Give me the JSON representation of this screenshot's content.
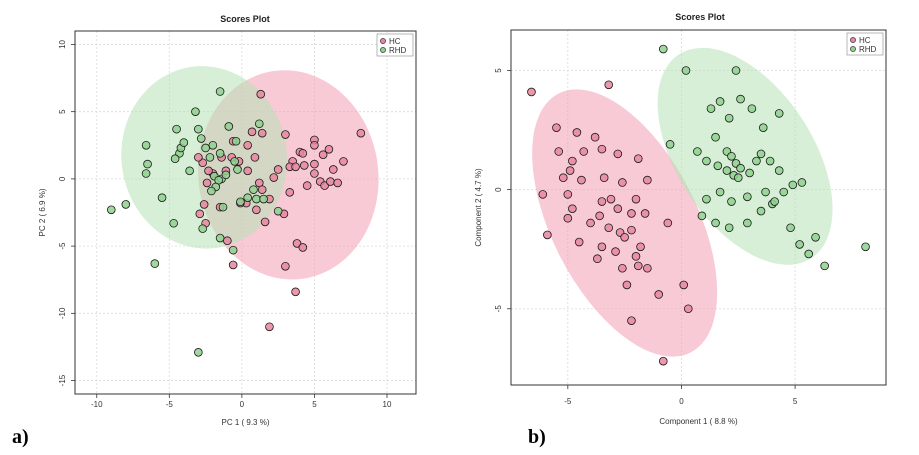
{
  "colors": {
    "HC": "#e8869f",
    "RHD": "#8fd18f",
    "HC_ellipse": "#f29fb5",
    "RHD_ellipse": "#b4e2b4"
  },
  "panels": [
    {
      "label": "a)"
    },
    {
      "label": "b)"
    }
  ],
  "chart_data": [
    {
      "type": "scatter",
      "title": "Scores Plot",
      "xlabel": "PC 1 ( 9.3 %)",
      "ylabel": "PC 2 ( 6.9 %)",
      "xlim": [
        -11.5,
        12
      ],
      "ylim": [
        -16,
        11
      ],
      "xticks": [
        -10,
        -5,
        0,
        5,
        10
      ],
      "yticks": [
        -15,
        -10,
        -5,
        0,
        5,
        10
      ],
      "grid": true,
      "legend": "top-right",
      "ellipses": [
        {
          "name": "HC",
          "cx": 3.2,
          "cy": 0.3,
          "rx": 6.2,
          "ry": 7.8,
          "angle": -8
        },
        {
          "name": "RHD",
          "cx": -2.6,
          "cy": 1.6,
          "rx": 5.7,
          "ry": 6.8,
          "angle": -8
        }
      ],
      "series": [
        {
          "name": "HC",
          "points": [
            [
              1.3,
              6.3
            ],
            [
              3.0,
              3.3
            ],
            [
              4.0,
              2.0
            ],
            [
              5.0,
              2.9
            ],
            [
              5.0,
              2.5
            ],
            [
              6.0,
              2.2
            ],
            [
              8.2,
              3.4
            ],
            [
              3.5,
              1.3
            ],
            [
              4.2,
              1.9
            ],
            [
              5.0,
              1.1
            ],
            [
              5.6,
              1.8
            ],
            [
              5.0,
              0.4
            ],
            [
              6.3,
              0.7
            ],
            [
              7.0,
              1.3
            ],
            [
              5.4,
              -0.2
            ],
            [
              5.7,
              -0.5
            ],
            [
              6.1,
              -0.2
            ],
            [
              6.6,
              -0.3
            ],
            [
              3.3,
              0.9
            ],
            [
              2.5,
              0.7
            ],
            [
              2.2,
              0.1
            ],
            [
              3.7,
              0.9
            ],
            [
              4.3,
              1.0
            ],
            [
              4.5,
              -0.5
            ],
            [
              3.3,
              -1.0
            ],
            [
              2.9,
              -2.6
            ],
            [
              1.9,
              -1.5
            ],
            [
              1.2,
              -0.3
            ],
            [
              1.4,
              -0.8
            ],
            [
              1.0,
              -2.3
            ],
            [
              0.3,
              -1.8
            ],
            [
              -0.1,
              -1.8
            ],
            [
              0.4,
              0.6
            ],
            [
              0.9,
              1.6
            ],
            [
              1.4,
              3.4
            ],
            [
              0.7,
              3.5
            ],
            [
              0.4,
              2.5
            ],
            [
              -0.2,
              1.3
            ],
            [
              -0.7,
              1.6
            ],
            [
              -0.6,
              2.8
            ],
            [
              -1.4,
              1.6
            ],
            [
              -1.1,
              0.6
            ],
            [
              -2.0,
              0.4
            ],
            [
              -2.3,
              0.6
            ],
            [
              -2.7,
              1.2
            ],
            [
              -3.0,
              1.6
            ],
            [
              -2.4,
              -0.3
            ],
            [
              -2.6,
              -1.9
            ],
            [
              -2.9,
              -2.6
            ],
            [
              -2.5,
              -3.3
            ],
            [
              1.6,
              -3.2
            ],
            [
              -1.5,
              -2.1
            ],
            [
              -1.0,
              -4.6
            ],
            [
              3.8,
              -4.8
            ],
            [
              4.2,
              -5.1
            ],
            [
              3.0,
              -6.5
            ],
            [
              -0.6,
              -6.4
            ],
            [
              3.7,
              -8.4
            ],
            [
              1.9,
              -11.0
            ]
          ]
        },
        {
          "name": "RHD",
          "points": [
            [
              -9.0,
              -2.3
            ],
            [
              -8.0,
              -1.9
            ],
            [
              -6.0,
              -6.3
            ],
            [
              -3.0,
              -12.9
            ],
            [
              -6.6,
              0.4
            ],
            [
              -6.5,
              1.1
            ],
            [
              -6.6,
              2.5
            ],
            [
              -5.5,
              -1.4
            ],
            [
              -4.7,
              -3.3
            ],
            [
              -4.3,
              1.9
            ],
            [
              -4.6,
              1.5
            ],
            [
              -4.2,
              2.3
            ],
            [
              -4.0,
              2.7
            ],
            [
              -4.5,
              3.7
            ],
            [
              -3.6,
              0.6
            ],
            [
              -2.8,
              3.0
            ],
            [
              -2.5,
              2.3
            ],
            [
              -2.0,
              2.5
            ],
            [
              -1.5,
              1.9
            ],
            [
              -2.2,
              1.6
            ],
            [
              -3.0,
              3.7
            ],
            [
              -3.2,
              5.0
            ],
            [
              -1.9,
              0.2
            ],
            [
              -1.4,
              0.0
            ],
            [
              -1.1,
              0.3
            ],
            [
              -1.6,
              -0.1
            ],
            [
              -1.8,
              -0.6
            ],
            [
              -2.1,
              -0.9
            ],
            [
              -1.3,
              -2.1
            ],
            [
              -1.5,
              -4.4
            ],
            [
              -0.9,
              3.9
            ],
            [
              -0.5,
              1.3
            ],
            [
              -0.4,
              2.8
            ],
            [
              -0.3,
              0.7
            ],
            [
              -0.1,
              -1.7
            ],
            [
              0.4,
              -1.4
            ],
            [
              0.8,
              -0.8
            ],
            [
              1.0,
              -1.5
            ],
            [
              1.5,
              -1.5
            ],
            [
              1.2,
              4.1
            ],
            [
              2.5,
              -2.4
            ],
            [
              -2.7,
              -3.7
            ],
            [
              -1.5,
              6.5
            ],
            [
              -0.6,
              -5.3
            ]
          ]
        }
      ]
    },
    {
      "type": "scatter",
      "title": "Scores Plot",
      "xlabel": "Component 1 ( 8.8 %)",
      "ylabel": "Component 2 ( 4.7 %)",
      "xlim": [
        -7.5,
        9
      ],
      "ylim": [
        -8.2,
        6.7
      ],
      "xticks": [
        -5,
        0,
        5
      ],
      "yticks": [
        -5,
        0,
        5
      ],
      "grid": true,
      "legend": "top-right",
      "ellipses": [
        {
          "name": "HC",
          "cx": -2.5,
          "cy": -1.4,
          "rx": 3.2,
          "ry": 6.1,
          "angle": -27
        },
        {
          "name": "RHD",
          "cx": 2.8,
          "cy": 1.4,
          "rx": 3.0,
          "ry": 5.1,
          "angle": -33
        }
      ],
      "series": [
        {
          "name": "HC",
          "points": [
            [
              -6.6,
              4.1
            ],
            [
              -5.5,
              2.6
            ],
            [
              -3.2,
              4.4
            ],
            [
              -4.6,
              2.4
            ],
            [
              -3.8,
              2.2
            ],
            [
              -5.4,
              1.6
            ],
            [
              -4.8,
              1.2
            ],
            [
              -4.3,
              1.6
            ],
            [
              -3.5,
              1.7
            ],
            [
              -2.8,
              1.5
            ],
            [
              -1.9,
              1.3
            ],
            [
              -4.9,
              0.8
            ],
            [
              -5.2,
              0.5
            ],
            [
              -4.4,
              0.4
            ],
            [
              -3.4,
              0.5
            ],
            [
              -2.6,
              0.3
            ],
            [
              -1.5,
              0.4
            ],
            [
              -5.0,
              -0.2
            ],
            [
              -3.5,
              -0.5
            ],
            [
              -3.1,
              -0.4
            ],
            [
              -2.0,
              -0.4
            ],
            [
              -6.1,
              -0.2
            ],
            [
              -4.8,
              -0.8
            ],
            [
              -3.6,
              -1.1
            ],
            [
              -2.8,
              -0.8
            ],
            [
              -2.2,
              -1.0
            ],
            [
              -1.6,
              -1.0
            ],
            [
              -3.2,
              -1.6
            ],
            [
              -4.0,
              -1.4
            ],
            [
              -5.0,
              -1.2
            ],
            [
              -2.7,
              -1.8
            ],
            [
              -2.2,
              -1.7
            ],
            [
              -0.6,
              -1.4
            ],
            [
              -4.5,
              -2.2
            ],
            [
              -3.5,
              -2.4
            ],
            [
              -2.9,
              -2.6
            ],
            [
              -1.8,
              -2.4
            ],
            [
              -2.5,
              -2.0
            ],
            [
              -2.0,
              -2.8
            ],
            [
              -3.7,
              -2.9
            ],
            [
              -2.6,
              -3.3
            ],
            [
              -1.9,
              -3.2
            ],
            [
              -1.5,
              -3.3
            ],
            [
              -2.4,
              -4.0
            ],
            [
              -1.0,
              -4.4
            ],
            [
              0.1,
              -4.0
            ],
            [
              0.3,
              -5.0
            ],
            [
              -2.2,
              -5.5
            ],
            [
              -0.8,
              -7.2
            ],
            [
              -5.9,
              -1.9
            ]
          ]
        },
        {
          "name": "RHD",
          "points": [
            [
              -0.8,
              5.9
            ],
            [
              0.2,
              5.0
            ],
            [
              2.4,
              5.0
            ],
            [
              -0.5,
              1.9
            ],
            [
              0.7,
              1.6
            ],
            [
              1.1,
              1.2
            ],
            [
              1.5,
              2.2
            ],
            [
              1.3,
              3.4
            ],
            [
              1.7,
              3.7
            ],
            [
              2.1,
              3.0
            ],
            [
              2.6,
              3.8
            ],
            [
              3.1,
              3.4
            ],
            [
              3.6,
              2.6
            ],
            [
              4.3,
              3.2
            ],
            [
              1.6,
              1.0
            ],
            [
              2.0,
              1.6
            ],
            [
              2.2,
              1.4
            ],
            [
              2.4,
              1.1
            ],
            [
              2.0,
              0.8
            ],
            [
              2.3,
              0.6
            ],
            [
              2.6,
              0.9
            ],
            [
              3.0,
              0.7
            ],
            [
              3.3,
              1.2
            ],
            [
              3.5,
              1.5
            ],
            [
              3.9,
              1.2
            ],
            [
              4.3,
              0.8
            ],
            [
              3.7,
              -0.1
            ],
            [
              2.9,
              -0.3
            ],
            [
              2.2,
              -0.5
            ],
            [
              1.7,
              -0.1
            ],
            [
              1.1,
              -0.4
            ],
            [
              0.9,
              -1.1
            ],
            [
              1.5,
              -1.4
            ],
            [
              2.1,
              -1.6
            ],
            [
              2.9,
              -1.4
            ],
            [
              3.5,
              -0.9
            ],
            [
              4.0,
              -0.6
            ],
            [
              4.5,
              -0.1
            ],
            [
              4.9,
              0.2
            ],
            [
              5.3,
              0.3
            ],
            [
              4.8,
              -1.6
            ],
            [
              5.2,
              -2.3
            ],
            [
              5.6,
              -2.7
            ],
            [
              5.9,
              -2.0
            ],
            [
              6.3,
              -3.2
            ],
            [
              8.1,
              -2.4
            ],
            [
              2.5,
              0.5
            ],
            [
              4.1,
              -0.5
            ]
          ]
        }
      ]
    }
  ]
}
